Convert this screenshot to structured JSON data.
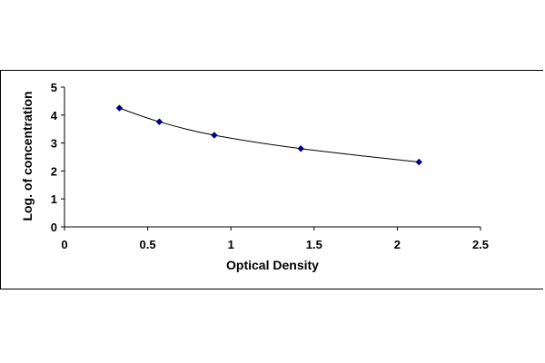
{
  "chart_data": {
    "type": "scatter",
    "title": "",
    "xlabel": "Optical Density",
    "ylabel": "Log. of concentration",
    "xlim": [
      0,
      2.5
    ],
    "ylim": [
      0,
      5
    ],
    "x_ticks": [
      "0",
      "0.5",
      "1",
      "1.5",
      "2",
      "2.5"
    ],
    "y_ticks": [
      "0",
      "1",
      "2",
      "3",
      "4",
      "5"
    ],
    "x_tick_values": [
      0,
      0.5,
      1,
      1.5,
      2,
      2.5
    ],
    "y_tick_values": [
      0,
      1,
      2,
      3,
      4,
      5
    ],
    "grid": false,
    "legend": "none",
    "series": [
      {
        "x": [
          0.33,
          0.57,
          0.9,
          1.42,
          2.13
        ],
        "y": [
          4.25,
          3.76,
          3.28,
          2.8,
          2.32
        ],
        "trendline": "smooth",
        "marker": "diamond",
        "color": "#000080"
      }
    ]
  }
}
